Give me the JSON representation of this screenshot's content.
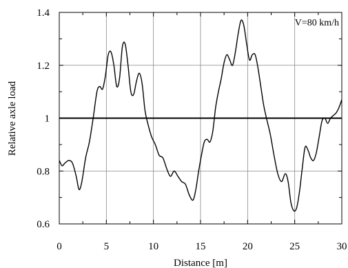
{
  "chart_data": {
    "type": "line",
    "title": "",
    "xlabel": "Distance [m]",
    "ylabel": "Relative axle load",
    "xlim": [
      0,
      30
    ],
    "ylim": [
      0.6,
      1.4
    ],
    "x_ticks": [
      0,
      5,
      10,
      15,
      20,
      25,
      30
    ],
    "y_ticks": [
      0.6,
      0.8,
      1.0,
      1.2,
      1.4
    ],
    "x_tick_labels": [
      "0",
      "5",
      "10",
      "15",
      "20",
      "25",
      "30"
    ],
    "y_tick_labels": [
      "0.6",
      "0.8",
      "1",
      "1.2",
      "1.4"
    ],
    "grid": true,
    "annotation": "V=80 km/h",
    "reference_line": 1.0,
    "series": [
      {
        "x": [
          0,
          0.3,
          0.6,
          1.0,
          1.4,
          1.8,
          2.1,
          2.4,
          2.8,
          3.2,
          3.6,
          4.0,
          4.3,
          4.6,
          4.9,
          5.2,
          5.5,
          5.8,
          6.1,
          6.4,
          6.7,
          7.0,
          7.3,
          7.6,
          7.9,
          8.2,
          8.5,
          8.8,
          9.1,
          9.4,
          9.8,
          10.2,
          10.6,
          11.0,
          11.4,
          11.8,
          12.2,
          12.6,
          13.0,
          13.4,
          13.8,
          14.2,
          14.5,
          14.8,
          15.1,
          15.4,
          15.7,
          16.0,
          16.3,
          16.6,
          16.9,
          17.2,
          17.5,
          17.8,
          18.1,
          18.4,
          18.7,
          19.0,
          19.3,
          19.6,
          19.9,
          20.2,
          20.5,
          20.8,
          21.1,
          21.4,
          21.7,
          22.0,
          22.4,
          22.8,
          23.2,
          23.6,
          24.0,
          24.3,
          24.6,
          24.9,
          25.2,
          25.5,
          25.8,
          26.1,
          26.4,
          26.7,
          27.0,
          27.3,
          27.6,
          27.9,
          28.2,
          28.5,
          28.8,
          29.1,
          29.4,
          29.7,
          30.0
        ],
        "y": [
          0.84,
          0.82,
          0.83,
          0.84,
          0.83,
          0.78,
          0.73,
          0.76,
          0.85,
          0.91,
          1.0,
          1.1,
          1.12,
          1.11,
          1.16,
          1.24,
          1.25,
          1.2,
          1.12,
          1.15,
          1.27,
          1.28,
          1.2,
          1.1,
          1.09,
          1.14,
          1.17,
          1.13,
          1.03,
          0.98,
          0.93,
          0.9,
          0.86,
          0.85,
          0.81,
          0.78,
          0.8,
          0.78,
          0.76,
          0.75,
          0.71,
          0.69,
          0.73,
          0.8,
          0.86,
          0.91,
          0.92,
          0.91,
          0.95,
          1.04,
          1.1,
          1.15,
          1.21,
          1.24,
          1.22,
          1.2,
          1.25,
          1.32,
          1.37,
          1.35,
          1.28,
          1.22,
          1.24,
          1.24,
          1.19,
          1.12,
          1.05,
          1.0,
          0.94,
          0.86,
          0.79,
          0.76,
          0.79,
          0.76,
          0.68,
          0.65,
          0.66,
          0.72,
          0.81,
          0.89,
          0.88,
          0.85,
          0.84,
          0.87,
          0.93,
          0.99,
          1.0,
          0.98,
          1.0,
          1.01,
          1.02,
          1.04,
          1.07
        ]
      }
    ]
  }
}
